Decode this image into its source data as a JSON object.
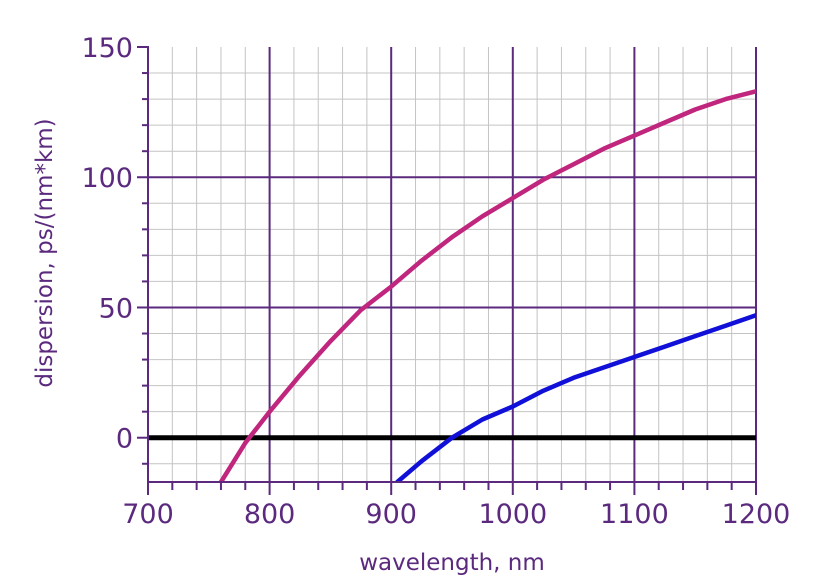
{
  "chart_data": {
    "type": "line",
    "title": "",
    "xlabel": "wavelength, nm",
    "ylabel": "dispersion, ps/(nm*km)",
    "xlim": [
      700,
      1200
    ],
    "ylim": [
      -17,
      150
    ],
    "x_ticks": [
      700,
      800,
      900,
      1000,
      1100,
      1200
    ],
    "y_ticks": [
      0,
      50,
      100,
      150
    ],
    "grid": true,
    "legend": "none",
    "zero_line": true,
    "colors": {
      "major_grid": "#5b2a7e",
      "minor_grid": "#c4c4c4",
      "axis": "#5b2a7e",
      "zero_line": "#000000"
    },
    "series": [
      {
        "color": "#c0267d",
        "x": [
          760,
          780,
          800,
          825,
          850,
          875,
          900,
          925,
          950,
          975,
          1000,
          1025,
          1050,
          1075,
          1100,
          1125,
          1150,
          1175,
          1200
        ],
        "y": [
          -17,
          -2,
          10,
          24,
          37,
          49,
          58,
          68,
          77,
          85,
          92,
          99,
          105,
          111,
          116,
          121,
          126,
          130,
          133
        ]
      },
      {
        "color": "#1010d8",
        "x": [
          905,
          925,
          950,
          975,
          1000,
          1025,
          1050,
          1075,
          1100,
          1125,
          1150,
          1175,
          1200
        ],
        "y": [
          -17,
          -9,
          0,
          7,
          12,
          18,
          23,
          27,
          31,
          35,
          39,
          43,
          47
        ]
      }
    ]
  }
}
